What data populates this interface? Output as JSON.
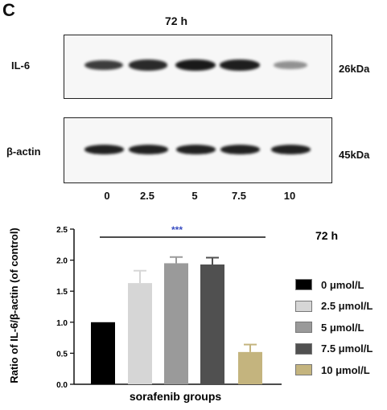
{
  "panel": {
    "letter": "C",
    "time_label": "72 h"
  },
  "blot": {
    "il6_label": "IL-6",
    "il6_size": "26kDa",
    "actin_label": "β-actin",
    "actin_size": "45kDa",
    "lanes": [
      "0",
      "2.5",
      "5",
      "7.5",
      "10"
    ],
    "il6_intensity": [
      0.75,
      0.85,
      0.95,
      0.92,
      0.25
    ],
    "actin_intensity": [
      0.9,
      0.9,
      0.9,
      0.9,
      0.9
    ]
  },
  "chart_time_label": "72 h",
  "chart_data": {
    "type": "bar",
    "categories": [
      "0 μmol/L",
      "2.5 μmol/L",
      "5 μmol/L",
      "7.5 μmol/L",
      "10 μmol/L"
    ],
    "values": [
      1.0,
      1.63,
      1.95,
      1.93,
      0.52
    ],
    "errors": [
      0,
      0.2,
      0.1,
      0.11,
      0.12
    ],
    "colors": [
      "#000000",
      "#d6d6d6",
      "#9a9a9a",
      "#505050",
      "#c4b47e"
    ],
    "title": "",
    "xlabel": "sorafenib groups",
    "ylabel": "Ratio of IL-6/β-actin (of control)",
    "ylim": [
      0,
      2.5
    ],
    "yticks": [
      "0.0",
      "0.5",
      "1.0",
      "1.5",
      "2.0",
      "2.5"
    ],
    "significance": "***",
    "significance_color": "#3a4ec2",
    "legend_position": "right"
  }
}
